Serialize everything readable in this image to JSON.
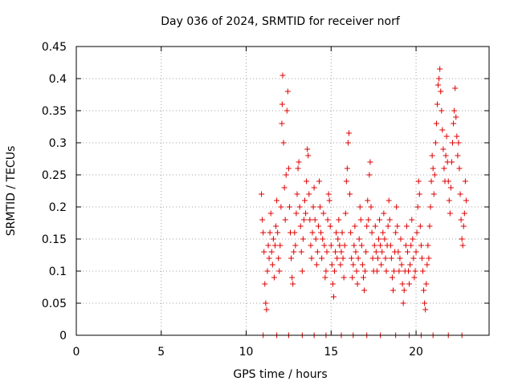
{
  "chart_data": {
    "type": "scatter",
    "title": "Day 036 of 2024, SRMTID for receiver norf",
    "xlabel": "GPS time / hours",
    "ylabel": "SRMTID / TECUs",
    "xlim": [
      0,
      24.3
    ],
    "ylim": [
      0,
      0.45
    ],
    "xticks": [
      0,
      5,
      10,
      15,
      20
    ],
    "xtick_labels": [
      "0",
      "5",
      "10",
      "15",
      "20"
    ],
    "yticks": [
      0,
      0.05,
      0.1,
      0.15,
      0.2,
      0.25,
      0.3,
      0.35,
      0.4,
      0.45
    ],
    "ytick_labels": [
      "0",
      "0.05",
      "0.1",
      "0.15",
      "0.2",
      "0.25",
      "0.3",
      "0.35",
      "0.4",
      "0.45"
    ],
    "grid": true,
    "marker": "+",
    "series": [
      {
        "name": "SRMTID",
        "color": "#e00000",
        "points": [
          [
            10.9,
            0.22
          ],
          [
            10.95,
            0.18
          ],
          [
            11.0,
            0.16
          ],
          [
            11.05,
            0.13
          ],
          [
            11.1,
            0.08
          ],
          [
            11.15,
            0.05
          ],
          [
            11.2,
            0.04
          ],
          [
            11.25,
            0.1
          ],
          [
            11.3,
            0.14
          ],
          [
            11.35,
            0.12
          ],
          [
            11.4,
            0.16
          ],
          [
            11.45,
            0.19
          ],
          [
            11.5,
            0.13
          ],
          [
            11.55,
            0.11
          ],
          [
            11.6,
            0.15
          ],
          [
            11.65,
            0.09
          ],
          [
            11.7,
            0.14
          ],
          [
            11.75,
            0.17
          ],
          [
            11.8,
            0.21
          ],
          [
            11.85,
            0.16
          ],
          [
            11.9,
            0.12
          ],
          [
            11.95,
            0.1
          ],
          [
            12.0,
            0.14
          ],
          [
            12.05,
            0.2
          ],
          [
            12.1,
            0.33
          ],
          [
            12.12,
            0.36
          ],
          [
            12.15,
            0.405
          ],
          [
            12.2,
            0.3
          ],
          [
            12.25,
            0.23
          ],
          [
            12.3,
            0.18
          ],
          [
            12.35,
            0.25
          ],
          [
            12.4,
            0.35
          ],
          [
            12.45,
            0.38
          ],
          [
            12.5,
            0.26
          ],
          [
            12.55,
            0.2
          ],
          [
            12.6,
            0.16
          ],
          [
            12.65,
            0.12
          ],
          [
            12.7,
            0.09
          ],
          [
            12.75,
            0.08
          ],
          [
            12.8,
            0.13
          ],
          [
            12.85,
            0.16
          ],
          [
            12.9,
            0.14
          ],
          [
            12.95,
            0.19
          ],
          [
            13.0,
            0.22
          ],
          [
            13.05,
            0.26
          ],
          [
            13.1,
            0.27
          ],
          [
            13.15,
            0.2
          ],
          [
            13.2,
            0.17
          ],
          [
            13.25,
            0.13
          ],
          [
            13.3,
            0.1
          ],
          [
            13.35,
            0.15
          ],
          [
            13.4,
            0.18
          ],
          [
            13.45,
            0.21
          ],
          [
            13.5,
            0.19
          ],
          [
            13.55,
            0.24
          ],
          [
            13.6,
            0.29
          ],
          [
            13.65,
            0.28
          ],
          [
            13.7,
            0.22
          ],
          [
            13.75,
            0.18
          ],
          [
            13.8,
            0.14
          ],
          [
            13.85,
            0.12
          ],
          [
            13.9,
            0.16
          ],
          [
            13.95,
            0.2
          ],
          [
            14.0,
            0.23
          ],
          [
            14.05,
            0.18
          ],
          [
            14.1,
            0.15
          ],
          [
            14.15,
            0.11
          ],
          [
            14.2,
            0.13
          ],
          [
            14.25,
            0.17
          ],
          [
            14.3,
            0.24
          ],
          [
            14.35,
            0.2
          ],
          [
            14.4,
            0.16
          ],
          [
            14.45,
            0.12
          ],
          [
            14.5,
            0.15
          ],
          [
            14.55,
            0.19
          ],
          [
            14.6,
            0.14
          ],
          [
            14.65,
            0.09
          ],
          [
            14.7,
            0.1
          ],
          [
            14.75,
            0.13
          ],
          [
            14.8,
            0.18
          ],
          [
            14.85,
            0.22
          ],
          [
            14.9,
            0.21
          ],
          [
            14.95,
            0.17
          ],
          [
            15.0,
            0.14
          ],
          [
            15.05,
            0.11
          ],
          [
            15.1,
            0.08
          ],
          [
            15.15,
            0.06
          ],
          [
            15.2,
            0.1
          ],
          [
            15.25,
            0.13
          ],
          [
            15.3,
            0.16
          ],
          [
            15.35,
            0.12
          ],
          [
            15.4,
            0.15
          ],
          [
            15.45,
            0.18
          ],
          [
            15.5,
            0.14
          ],
          [
            15.55,
            0.11
          ],
          [
            15.6,
            0.13
          ],
          [
            15.65,
            0.16
          ],
          [
            15.7,
            0.12
          ],
          [
            15.75,
            0.09
          ],
          [
            15.8,
            0.14
          ],
          [
            15.85,
            0.19
          ],
          [
            15.9,
            0.24
          ],
          [
            15.95,
            0.26
          ],
          [
            16.0,
            0.3
          ],
          [
            16.05,
            0.315
          ],
          [
            16.1,
            0.22
          ],
          [
            16.15,
            0.16
          ],
          [
            16.2,
            0.12
          ],
          [
            16.25,
            0.09
          ],
          [
            16.3,
            0.11
          ],
          [
            16.35,
            0.14
          ],
          [
            16.4,
            0.17
          ],
          [
            16.45,
            0.13
          ],
          [
            16.5,
            0.1
          ],
          [
            16.55,
            0.08
          ],
          [
            16.6,
            0.12
          ],
          [
            16.65,
            0.15
          ],
          [
            16.7,
            0.2
          ],
          [
            16.75,
            0.18
          ],
          [
            16.8,
            0.14
          ],
          [
            16.85,
            0.11
          ],
          [
            16.9,
            0.09
          ],
          [
            16.95,
            0.07
          ],
          [
            17.0,
            0.1
          ],
          [
            17.05,
            0.13
          ],
          [
            17.1,
            0.17
          ],
          [
            17.15,
            0.21
          ],
          [
            17.2,
            0.18
          ],
          [
            17.25,
            0.25
          ],
          [
            17.3,
            0.27
          ],
          [
            17.35,
            0.2
          ],
          [
            17.4,
            0.16
          ],
          [
            17.45,
            0.12
          ],
          [
            17.5,
            0.1
          ],
          [
            17.55,
            0.14
          ],
          [
            17.6,
            0.17
          ],
          [
            17.65,
            0.13
          ],
          [
            17.7,
            0.1
          ],
          [
            17.75,
            0.12
          ],
          [
            17.8,
            0.15
          ],
          [
            17.85,
            0.18
          ],
          [
            17.9,
            0.14
          ],
          [
            17.95,
            0.11
          ],
          [
            18.0,
            0.13
          ],
          [
            18.05,
            0.16
          ],
          [
            18.1,
            0.19
          ],
          [
            18.15,
            0.15
          ],
          [
            18.2,
            0.12
          ],
          [
            18.25,
            0.1
          ],
          [
            18.3,
            0.14
          ],
          [
            18.35,
            0.17
          ],
          [
            18.4,
            0.21
          ],
          [
            18.45,
            0.18
          ],
          [
            18.5,
            0.14
          ],
          [
            18.55,
            0.12
          ],
          [
            18.6,
            0.09
          ],
          [
            18.65,
            0.07
          ],
          [
            18.7,
            0.1
          ],
          [
            18.75,
            0.13
          ],
          [
            18.8,
            0.16
          ],
          [
            18.85,
            0.2
          ],
          [
            18.9,
            0.17
          ],
          [
            18.95,
            0.13
          ],
          [
            19.0,
            0.1
          ],
          [
            19.05,
            0.12
          ],
          [
            19.1,
            0.15
          ],
          [
            19.15,
            0.11
          ],
          [
            19.2,
            0.08
          ],
          [
            19.25,
            0.05
          ],
          [
            19.3,
            0.07
          ],
          [
            19.35,
            0.1
          ],
          [
            19.4,
            0.14
          ],
          [
            19.45,
            0.17
          ],
          [
            19.5,
            0.13
          ],
          [
            19.55,
            0.1
          ],
          [
            19.6,
            0.08
          ],
          [
            19.65,
            0.11
          ],
          [
            19.7,
            0.14
          ],
          [
            19.75,
            0.18
          ],
          [
            19.8,
            0.15
          ],
          [
            19.85,
            0.12
          ],
          [
            19.9,
            0.09
          ],
          [
            19.95,
            0.1
          ],
          [
            20.0,
            0.13
          ],
          [
            20.05,
            0.16
          ],
          [
            20.1,
            0.2
          ],
          [
            20.15,
            0.24
          ],
          [
            20.2,
            0.22
          ],
          [
            20.25,
            0.17
          ],
          [
            20.3,
            0.14
          ],
          [
            20.35,
            0.12
          ],
          [
            20.4,
            0.1
          ],
          [
            20.45,
            0.07
          ],
          [
            20.5,
            0.05
          ],
          [
            20.55,
            0.04
          ],
          [
            20.6,
            0.08
          ],
          [
            20.65,
            0.11
          ],
          [
            20.7,
            0.14
          ],
          [
            20.75,
            0.12
          ],
          [
            20.8,
            0.17
          ],
          [
            20.85,
            0.2
          ],
          [
            20.9,
            0.24
          ],
          [
            20.95,
            0.28
          ],
          [
            21.0,
            0.26
          ],
          [
            21.05,
            0.22
          ],
          [
            21.1,
            0.25
          ],
          [
            21.15,
            0.3
          ],
          [
            21.2,
            0.33
          ],
          [
            21.25,
            0.36
          ],
          [
            21.3,
            0.39
          ],
          [
            21.35,
            0.4
          ],
          [
            21.4,
            0.415
          ],
          [
            21.45,
            0.38
          ],
          [
            21.5,
            0.35
          ],
          [
            21.55,
            0.32
          ],
          [
            21.6,
            0.29
          ],
          [
            21.65,
            0.26
          ],
          [
            21.7,
            0.24
          ],
          [
            21.75,
            0.28
          ],
          [
            21.8,
            0.31
          ],
          [
            21.85,
            0.27
          ],
          [
            21.9,
            0.24
          ],
          [
            21.95,
            0.21
          ],
          [
            22.0,
            0.19
          ],
          [
            22.05,
            0.23
          ],
          [
            22.1,
            0.27
          ],
          [
            22.15,
            0.3
          ],
          [
            22.2,
            0.33
          ],
          [
            22.25,
            0.35
          ],
          [
            22.3,
            0.385
          ],
          [
            22.35,
            0.34
          ],
          [
            22.4,
            0.31
          ],
          [
            22.45,
            0.28
          ],
          [
            22.5,
            0.3
          ],
          [
            22.55,
            0.26
          ],
          [
            22.6,
            0.22
          ],
          [
            22.65,
            0.18
          ],
          [
            22.7,
            0.15
          ],
          [
            22.75,
            0.14
          ],
          [
            22.8,
            0.17
          ],
          [
            22.85,
            0.19
          ],
          [
            22.9,
            0.24
          ],
          [
            22.95,
            0.21
          ],
          [
            11.0,
            0.0
          ],
          [
            11.8,
            0.0
          ],
          [
            12.5,
            0.0
          ],
          [
            13.3,
            0.0
          ],
          [
            14.0,
            0.0
          ],
          [
            14.7,
            0.0
          ],
          [
            15.6,
            0.0
          ],
          [
            16.3,
            0.0
          ],
          [
            17.1,
            0.0
          ],
          [
            17.9,
            0.0
          ],
          [
            18.8,
            0.0
          ],
          [
            19.6,
            0.0
          ],
          [
            20.3,
            0.0
          ],
          [
            21.0,
            0.0
          ],
          [
            21.9,
            0.0
          ],
          [
            22.7,
            0.0
          ]
        ]
      }
    ]
  }
}
